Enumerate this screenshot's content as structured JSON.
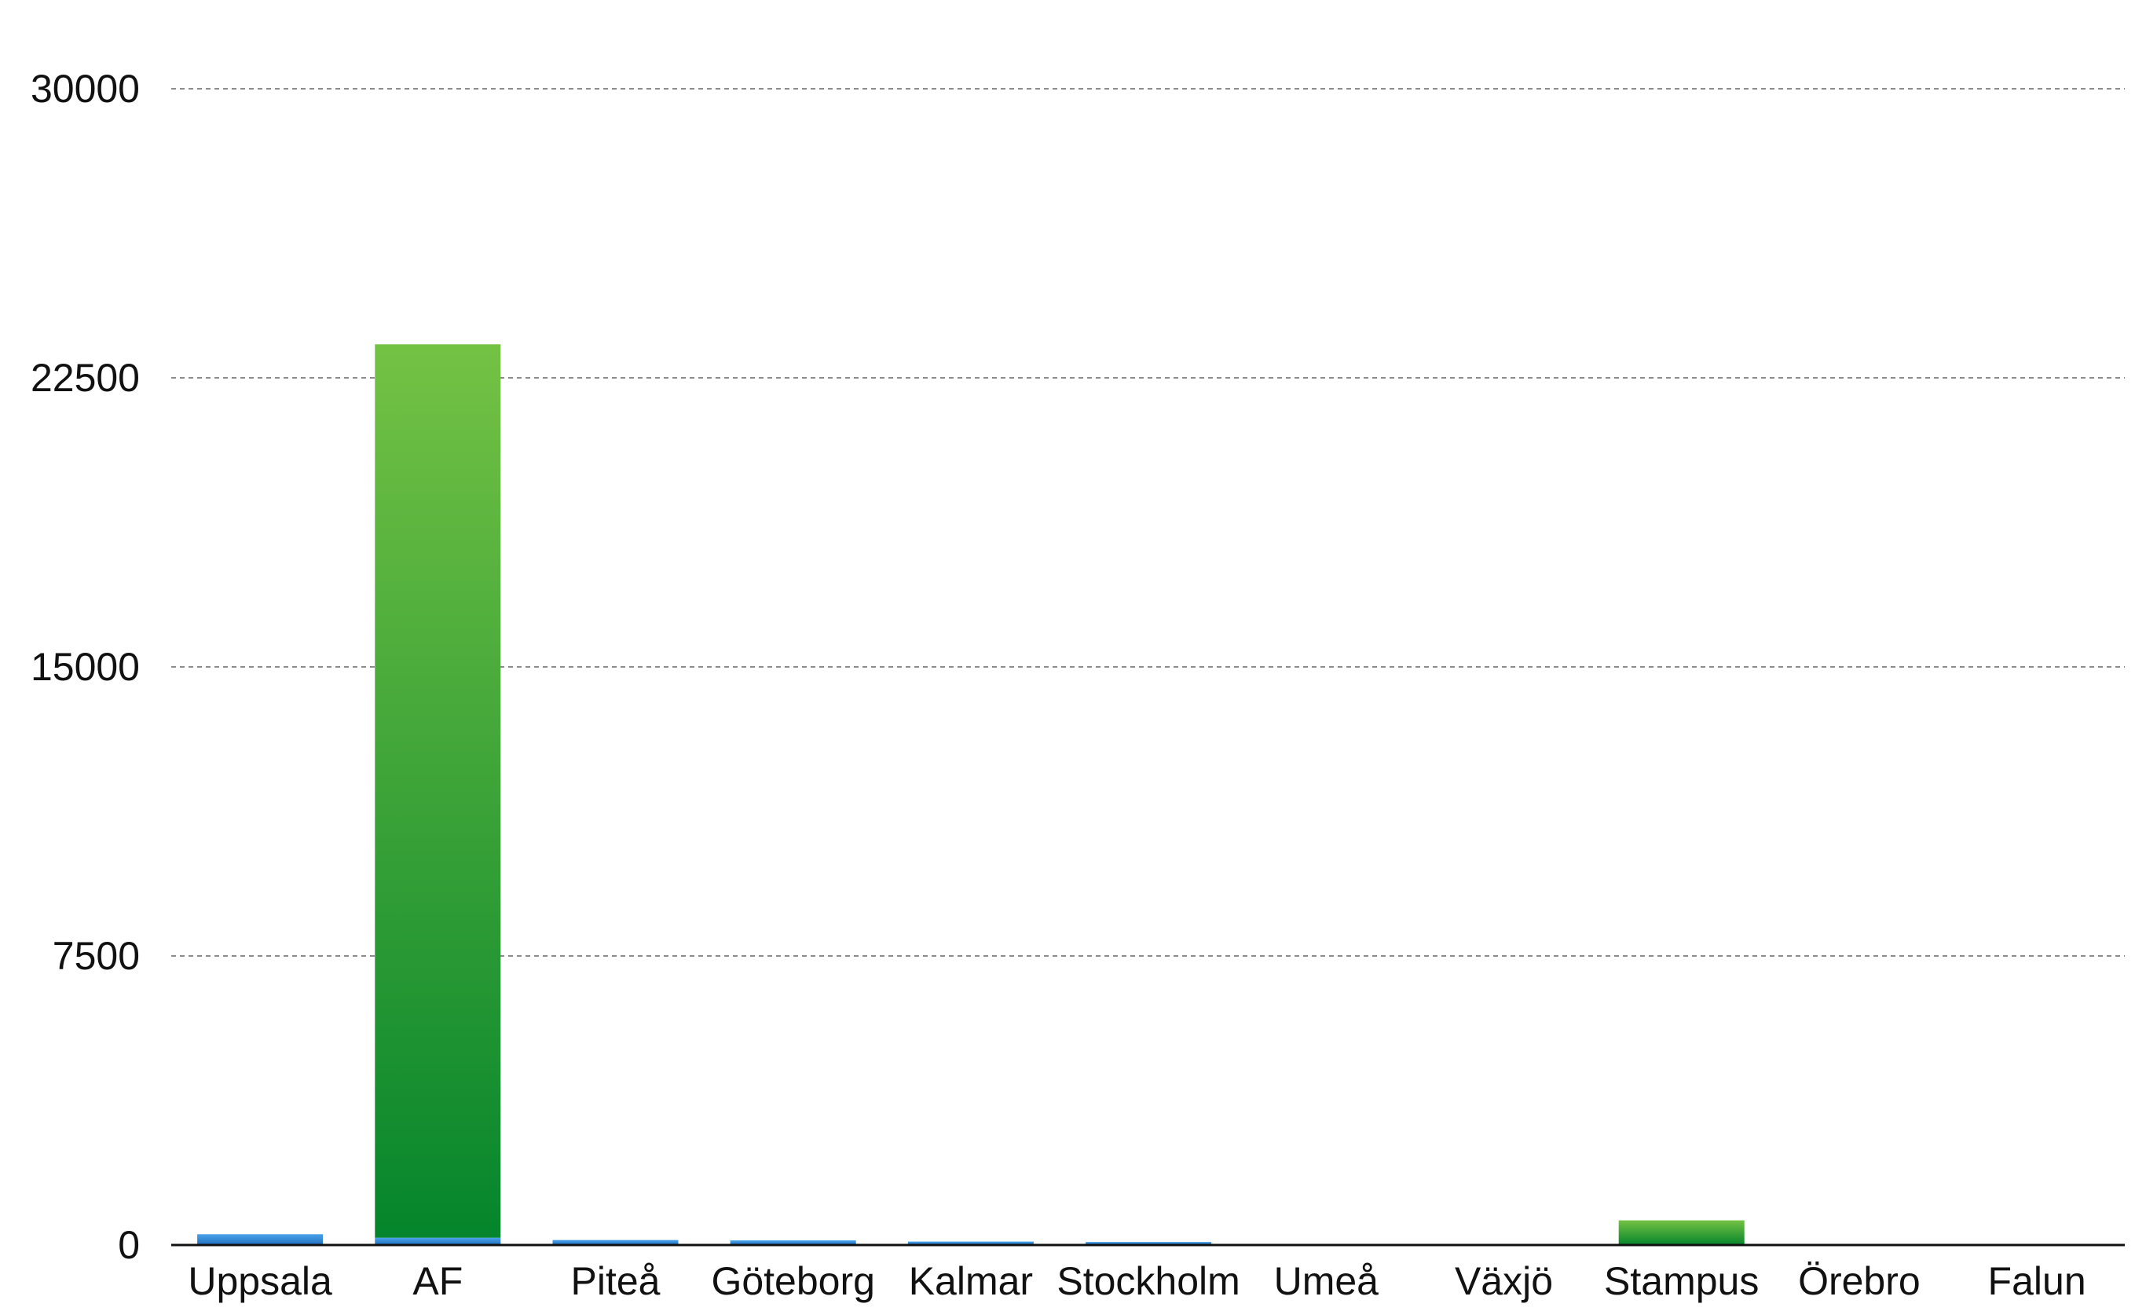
{
  "chart_data": {
    "type": "bar",
    "stacked": true,
    "categories": [
      "Uppsala",
      "AF",
      "Piteå",
      "Göteborg",
      "Kalmar",
      "Stockholm",
      "Umeå",
      "Växjö",
      "Stampus",
      "Örebro",
      "Falun"
    ],
    "series": [
      {
        "color": "#2f8fd8",
        "values": [
          280,
          190,
          130,
          120,
          90,
          80,
          0,
          0,
          0,
          0,
          0
        ]
      },
      {
        "color": "#3aa33a",
        "values": [
          0,
          23180,
          0,
          0,
          0,
          0,
          0,
          0,
          640,
          0,
          0
        ]
      }
    ],
    "ylim": [
      0,
      30000
    ],
    "yticks": [
      0,
      7500,
      15000,
      22500,
      30000
    ],
    "ytick_labels": [
      "0",
      "7500",
      "15000",
      "22500",
      "30000"
    ],
    "grid": true,
    "title": "",
    "xlabel": "",
    "ylabel": ""
  }
}
